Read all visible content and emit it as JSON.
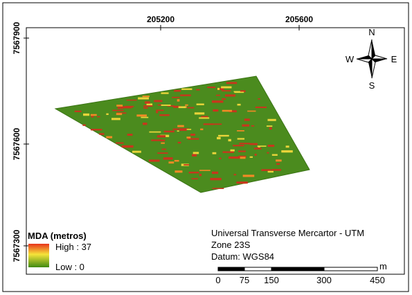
{
  "map": {
    "x_ticks": [
      "205200",
      "205600"
    ],
    "y_ticks": [
      "7567900",
      "7567600",
      "7567300"
    ],
    "north_arrow": {
      "n": "N",
      "s": "S",
      "e": "E",
      "w": "W"
    },
    "legend": {
      "title": "MDA (metros)",
      "high": "High : 37",
      "low": "Low : 0"
    },
    "projection": [
      "Universal Transverse Mercartor - UTM",
      "Zone 23S",
      "Datum: WGS84"
    ],
    "scale_bar": {
      "unit": "m",
      "labels": [
        "0",
        "75",
        "150",
        "300",
        "450"
      ]
    }
  }
}
